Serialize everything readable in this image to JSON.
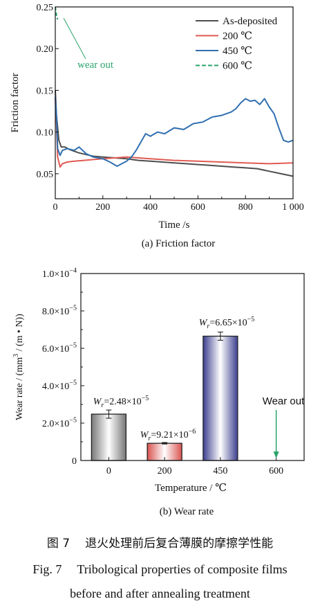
{
  "figure": {
    "caption_cn_num": "图 7",
    "caption_cn_text": "退火处理前后复合薄膜的摩擦学性能",
    "caption_en_num": "Fig. 7",
    "caption_en_text_line1": "Tribological properties of composite films",
    "caption_en_text_line2": "before and after annealing treatment"
  },
  "chart_data": [
    {
      "type": "line",
      "subtitle": "(a) Friction factor",
      "xlabel": "Time /s",
      "ylabel": "Friction factor",
      "xlim": [
        0,
        1000
      ],
      "ylim": [
        0.02,
        0.25
      ],
      "xticks": [
        0,
        200,
        400,
        600,
        800,
        1000
      ],
      "xtick_labels": [
        "0",
        "200",
        "400",
        "600",
        "800",
        "1 000"
      ],
      "yticks": [
        0.05,
        0.1,
        0.15,
        0.2,
        0.25
      ],
      "ytick_labels": [
        "0.05",
        "0.10",
        "0.15",
        "0.20",
        "0.25"
      ],
      "legend_position": "top-right",
      "annotation": "wear out",
      "series": [
        {
          "name": "As-deposited",
          "color": "#4d4d4d",
          "dash": "solid",
          "x": [
            0,
            5,
            15,
            25,
            40,
            60,
            80,
            100,
            130,
            160,
            200,
            250,
            300,
            350,
            400,
            450,
            500,
            550,
            600,
            650,
            700,
            750,
            800,
            850,
            900,
            950,
            1000
          ],
          "y": [
            0.15,
            0.12,
            0.09,
            0.082,
            0.082,
            0.079,
            0.077,
            0.075,
            0.073,
            0.071,
            0.07,
            0.069,
            0.068,
            0.066,
            0.065,
            0.064,
            0.063,
            0.062,
            0.061,
            0.06,
            0.059,
            0.058,
            0.057,
            0.056,
            0.053,
            0.05,
            0.047
          ]
        },
        {
          "name": "200 ℃",
          "color": "#e05a52",
          "dash": "solid",
          "x": [
            0,
            5,
            10,
            20,
            30,
            50,
            80,
            120,
            160,
            200,
            250,
            300,
            400,
            500,
            600,
            700,
            800,
            900,
            1000
          ],
          "y": [
            0.14,
            0.11,
            0.07,
            0.058,
            0.062,
            0.064,
            0.065,
            0.066,
            0.067,
            0.068,
            0.069,
            0.07,
            0.068,
            0.066,
            0.065,
            0.064,
            0.063,
            0.062,
            0.063
          ]
        },
        {
          "name": "450 ℃",
          "color": "#2f6fb0",
          "dash": "solid",
          "x": [
            0,
            5,
            10,
            20,
            30,
            50,
            80,
            100,
            130,
            160,
            200,
            230,
            260,
            280,
            300,
            320,
            340,
            360,
            380,
            400,
            430,
            460,
            500,
            540,
            580,
            620,
            660,
            700,
            740,
            760,
            780,
            800,
            820,
            840,
            860,
            880,
            900,
            920,
            940,
            960,
            980,
            1000
          ],
          "y": [
            0.142,
            0.12,
            0.08,
            0.072,
            0.078,
            0.08,
            0.078,
            0.082,
            0.074,
            0.07,
            0.068,
            0.064,
            0.059,
            0.062,
            0.065,
            0.07,
            0.078,
            0.088,
            0.098,
            0.095,
            0.1,
            0.098,
            0.105,
            0.103,
            0.11,
            0.112,
            0.118,
            0.12,
            0.124,
            0.128,
            0.135,
            0.14,
            0.137,
            0.138,
            0.133,
            0.14,
            0.13,
            0.122,
            0.105,
            0.09,
            0.088,
            0.09
          ]
        },
        {
          "name": "600 ℃",
          "color": "#2aa36b",
          "dash": "dash",
          "x": [
            0,
            5,
            10
          ],
          "y": [
            0.25,
            0.24,
            0.235
          ]
        }
      ]
    },
    {
      "type": "bar",
      "subtitle": "(b) Wear rate",
      "xlabel": "Temperature / ℃",
      "ylabel": "Wear rate / (mm³ / (m • N))",
      "categories": [
        "0",
        "200",
        "450",
        "600"
      ],
      "values": [
        2.48e-05,
        9.21e-06,
        6.65e-05,
        0
      ],
      "errors": [
        2.2e-06,
        4e-07,
        2.2e-06,
        0
      ],
      "value_labels": [
        "Wr=2.48×10⁻⁵",
        "Wr=9.21×10⁻⁶",
        "Wr=6.65×10⁻⁵",
        ""
      ],
      "bar_colors": [
        "#777777",
        "#d9534f",
        "#3c3f8f",
        ""
      ],
      "ylim": [
        0,
        0.0001
      ],
      "yticks": [
        0,
        2e-05,
        4e-05,
        6e-05,
        8e-05,
        0.0001
      ],
      "ytick_labels": [
        "0",
        "2.0×10⁻⁵",
        "4.0×10⁻⁵",
        "6.0×10⁻⁵",
        "8.0×10⁻⁵",
        "1.0×10⁻⁴"
      ],
      "annotation": "Wear out",
      "annotation_color": "#2aa36b"
    }
  ]
}
